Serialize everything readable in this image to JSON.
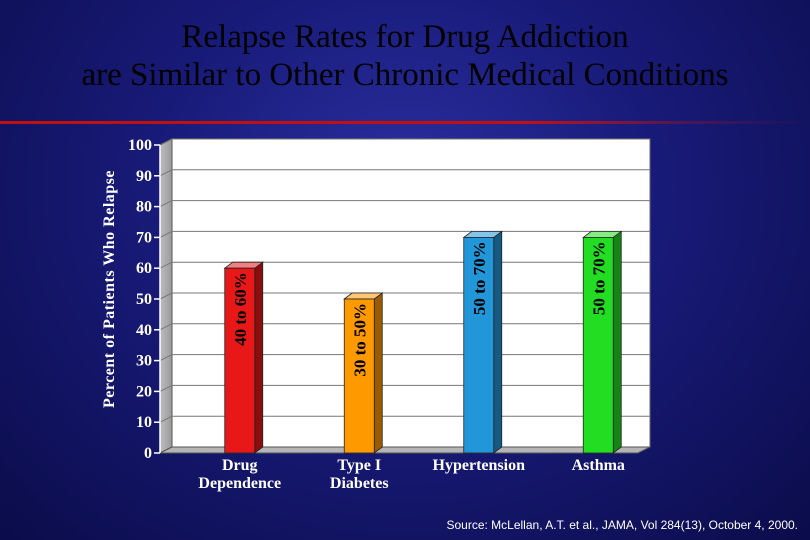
{
  "title_lines": [
    "Relapse Rates for Drug Addiction",
    "are Similar to Other Chronic Medical Conditions"
  ],
  "source": "Source: McLellan, A.T. et al., JAMA, Vol 284(13), October 4, 2000.",
  "chart_data": {
    "type": "bar",
    "title": "Relapse Rates for Drug Addiction are Similar to Other Chronic Medical Conditions",
    "ylabel": "Percent of Patients Who Relapse",
    "xlabel": "",
    "ylim": [
      0,
      100
    ],
    "yticks": [
      0,
      10,
      20,
      30,
      40,
      50,
      60,
      70,
      80,
      90,
      100
    ],
    "grid": true,
    "categories": [
      [
        "Drug",
        "Dependence"
      ],
      [
        "Type I",
        "Diabetes"
      ],
      [
        "Hypertension"
      ],
      [
        "Asthma"
      ]
    ],
    "values": [
      60,
      50,
      70,
      70
    ],
    "ranges": [
      [
        40,
        60
      ],
      [
        30,
        50
      ],
      [
        50,
        70
      ],
      [
        50,
        70
      ]
    ],
    "bar_labels": [
      "40 to 60%",
      "30 to 50%",
      "50 to 70%",
      "50 to 70%"
    ],
    "colors": [
      "#e81818",
      "#ff9900",
      "#2196d8",
      "#22dd22"
    ]
  }
}
